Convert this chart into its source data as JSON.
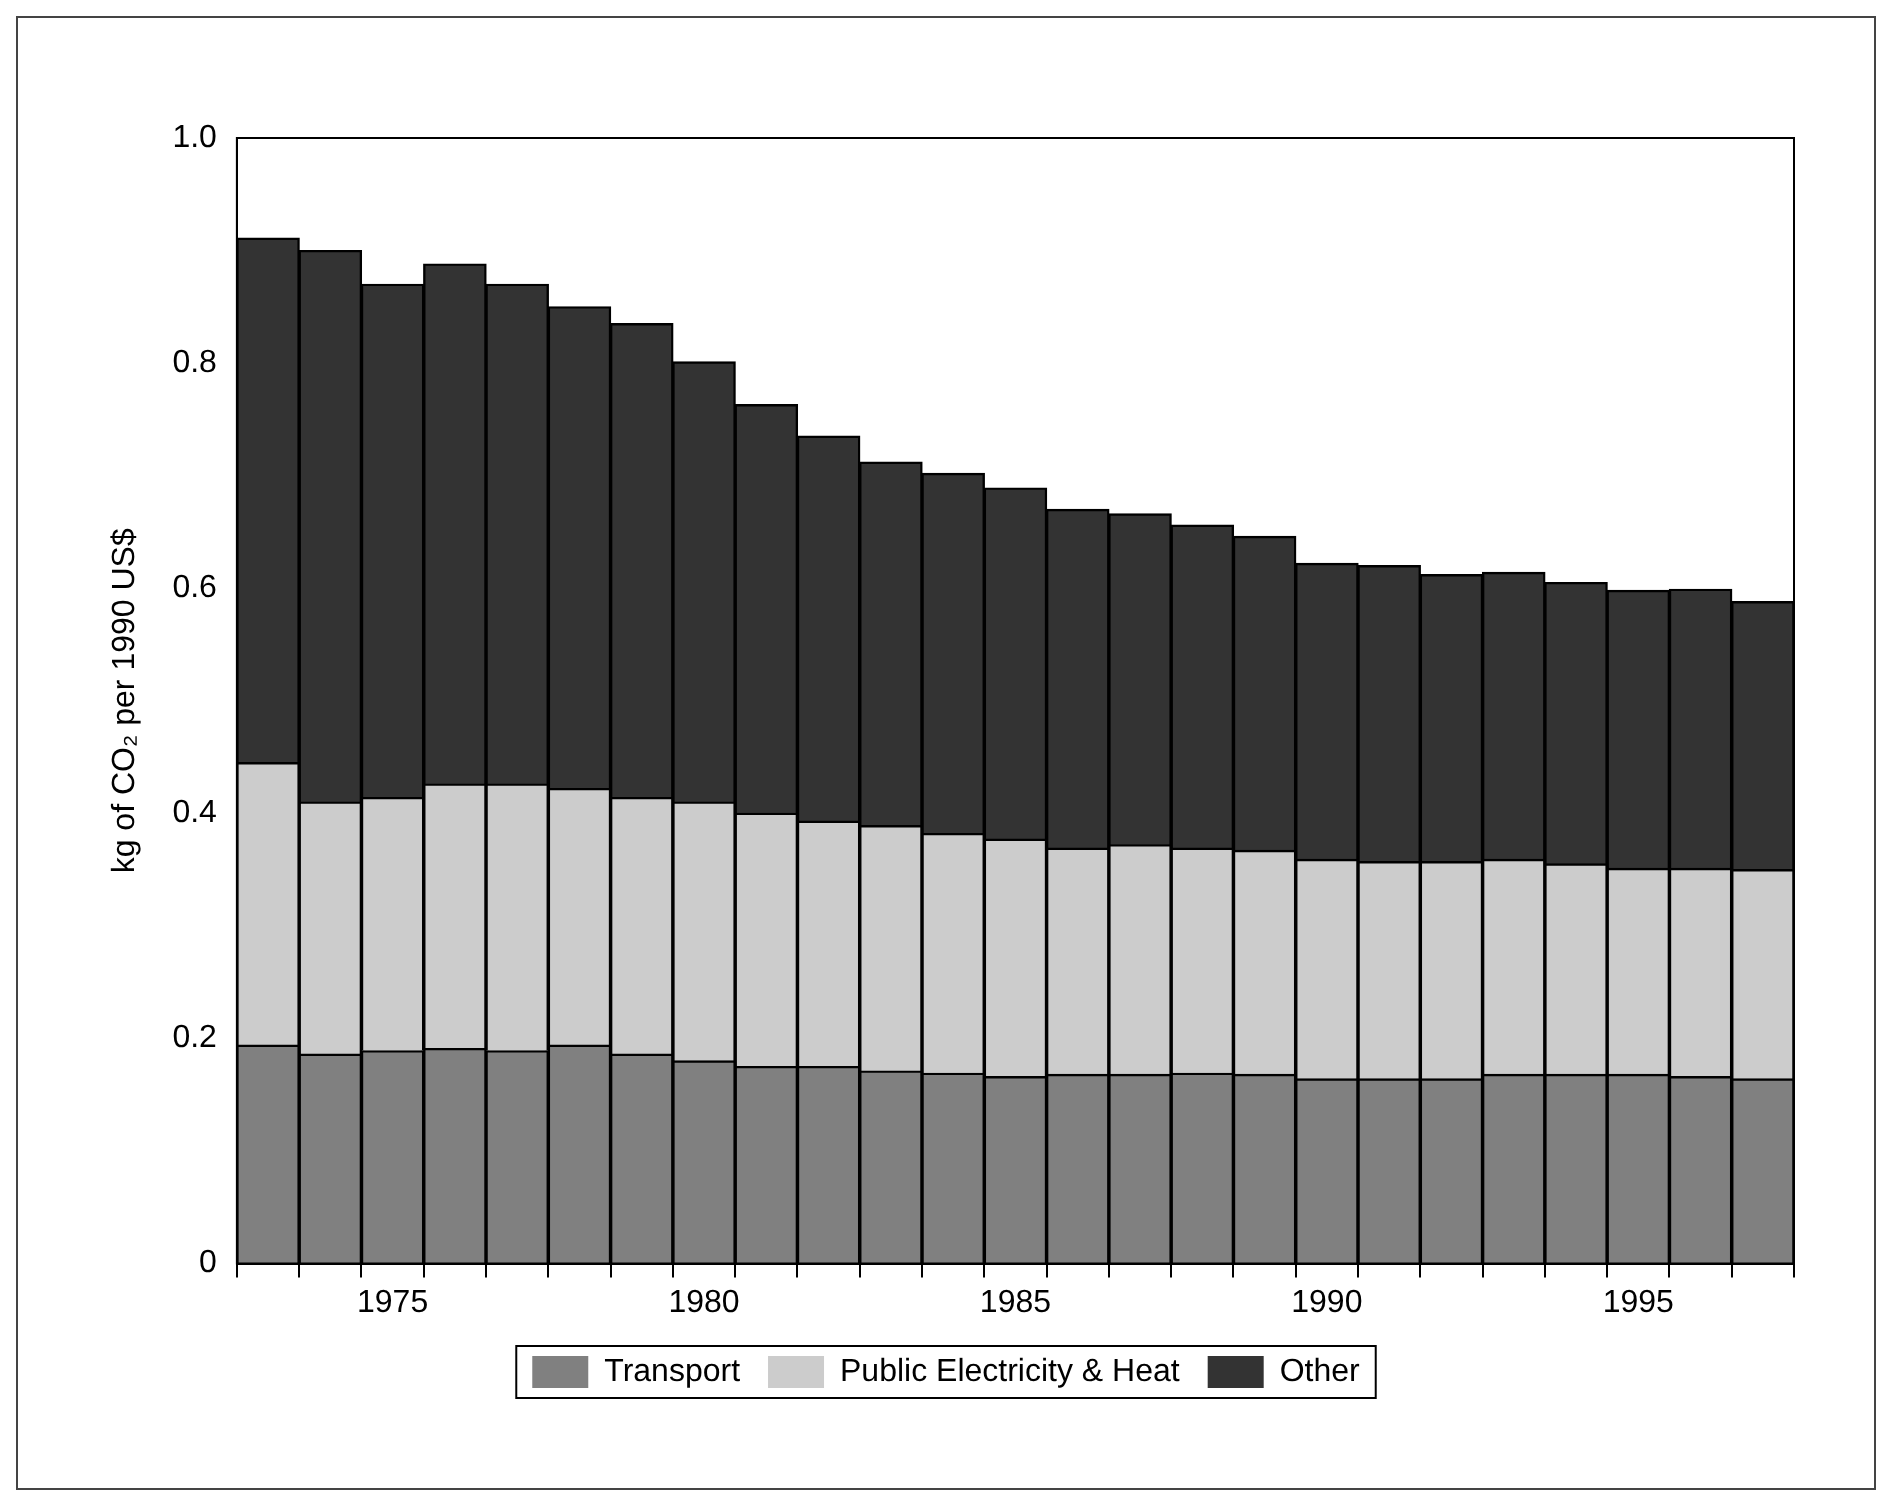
{
  "chart_data": {
    "type": "bar",
    "stacked": true,
    "ylabel": "kg of CO₂ per 1990 US$",
    "categories": [
      null,
      null,
      "1975",
      null,
      null,
      null,
      null,
      "1980",
      null,
      null,
      null,
      null,
      "1985",
      null,
      null,
      null,
      null,
      "1990",
      null,
      null,
      null,
      null,
      "1995",
      null,
      null
    ],
    "series": [
      {
        "name": "Transport",
        "color": "#808080",
        "values": [
          0.194,
          0.186,
          0.189,
          0.191,
          0.189,
          0.194,
          0.186,
          0.18,
          0.175,
          0.175,
          0.171,
          0.169,
          0.166,
          0.168,
          0.168,
          0.169,
          0.168,
          0.164,
          0.164,
          0.164,
          0.168,
          0.168,
          0.168,
          0.166,
          0.164
        ]
      },
      {
        "name": "Public Electricity & Heat",
        "color": "#cccccc",
        "values": [
          0.251,
          0.224,
          0.225,
          0.235,
          0.237,
          0.228,
          0.228,
          0.23,
          0.225,
          0.218,
          0.218,
          0.213,
          0.211,
          0.201,
          0.204,
          0.2,
          0.199,
          0.195,
          0.193,
          0.193,
          0.191,
          0.187,
          0.183,
          0.185,
          0.186
        ]
      },
      {
        "name": "Other",
        "color": "#333333",
        "values": [
          0.466,
          0.49,
          0.456,
          0.462,
          0.444,
          0.428,
          0.421,
          0.391,
          0.363,
          0.342,
          0.323,
          0.32,
          0.312,
          0.301,
          0.294,
          0.287,
          0.279,
          0.263,
          0.263,
          0.255,
          0.255,
          0.25,
          0.247,
          0.248,
          0.238
        ]
      }
    ],
    "ylim": [
      0,
      1.0
    ],
    "yticks": [
      0,
      {
        "value": 0.2,
        "label": "0.2"
      },
      {
        "value": 0.4,
        "label": "0.4"
      },
      {
        "value": 0.6,
        "label": "0.6"
      },
      {
        "value": 0.8,
        "label": "0.8"
      },
      {
        "value": 1.0,
        "label": "1.0"
      }
    ],
    "grid": false,
    "legend": "bottom"
  }
}
